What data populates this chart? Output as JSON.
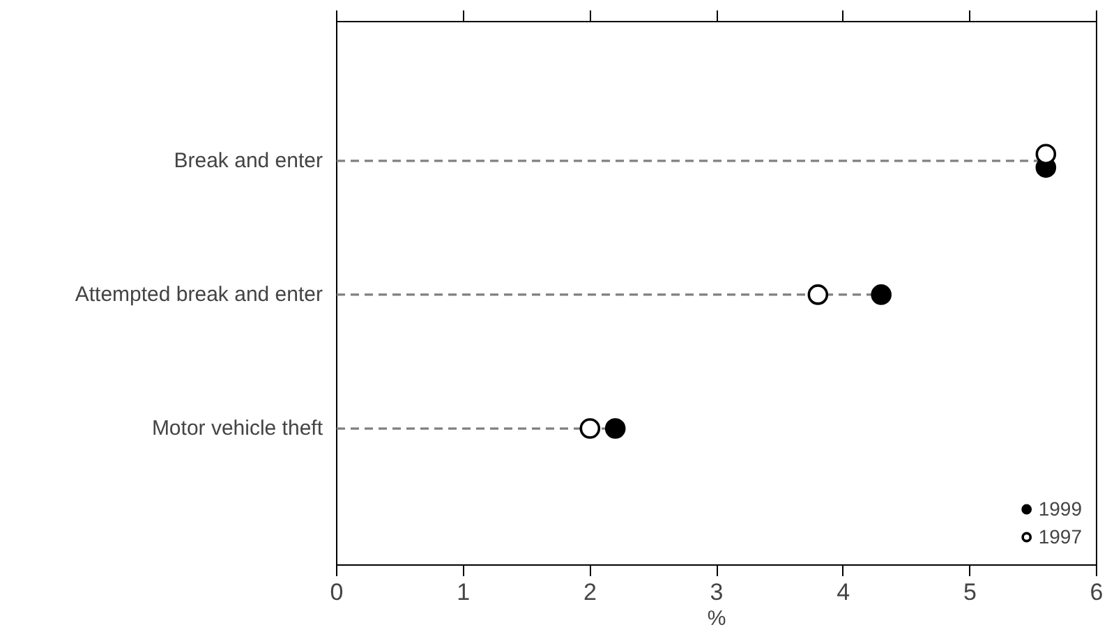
{
  "chart_data": {
    "type": "lollipop",
    "categories": [
      "Break and enter",
      "Attempted break and enter",
      "Motor vehicle theft"
    ],
    "series": [
      {
        "name": "1999",
        "color": "#000000",
        "values": [
          5.6,
          4.3,
          2.2
        ]
      },
      {
        "name": "1997",
        "color": "#ffffff",
        "values": [
          5.6,
          3.8,
          2.0
        ]
      }
    ],
    "xlabel": "%",
    "xlim": [
      0,
      6
    ],
    "xticks": [
      0,
      1,
      2,
      3,
      4,
      5,
      6
    ],
    "orientation": "horizontal",
    "line_style": "dashed",
    "marker": "circle",
    "legend": "bottom right"
  }
}
